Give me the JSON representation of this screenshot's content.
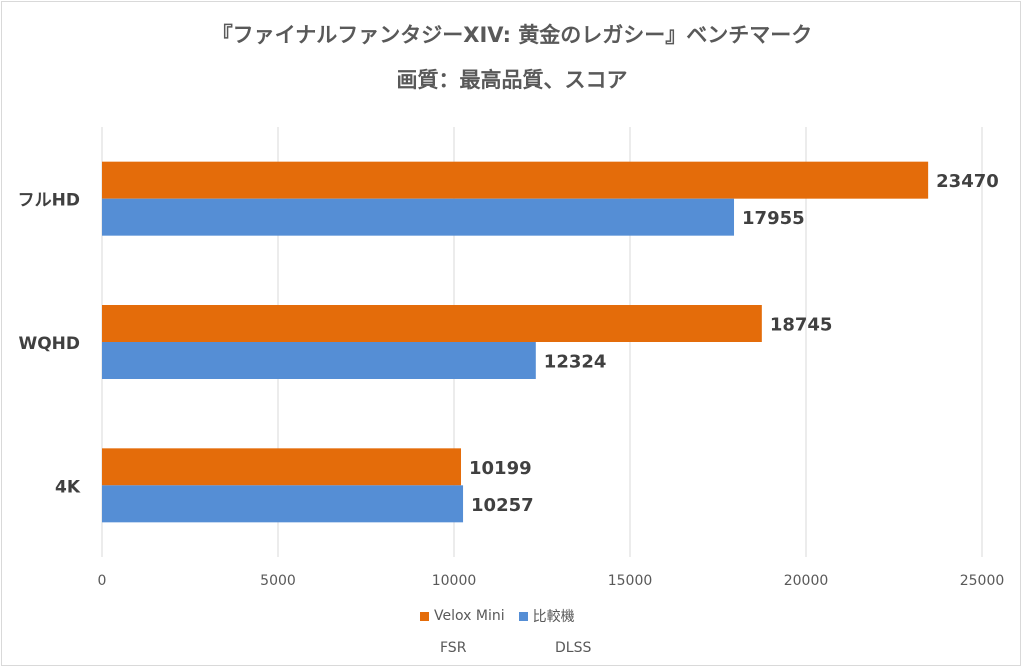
{
  "chart_data": {
    "type": "bar",
    "orientation": "horizontal",
    "title": "『ファイナルファンタジーXIV: 黄金のレガシー』ベンチマーク",
    "subtitle": "画質：最高品質、スコア",
    "categories": [
      "フルHD",
      "WQHD",
      "4K"
    ],
    "series": [
      {
        "name": "Velox Mini",
        "color": "#e46c0a",
        "values": [
          23470,
          18745,
          10199
        ]
      },
      {
        "name": "比較機",
        "color": "#558ed5",
        "values": [
          17955,
          12324,
          10257
        ]
      }
    ],
    "xlim": [
      0,
      25000
    ],
    "xticks": [
      "0",
      "5000",
      "10000",
      "15000",
      "20000",
      "25000"
    ],
    "grid": true,
    "legend_position": "bottom",
    "data_labels": true,
    "notes": [
      "FSR",
      "DLSS"
    ]
  }
}
